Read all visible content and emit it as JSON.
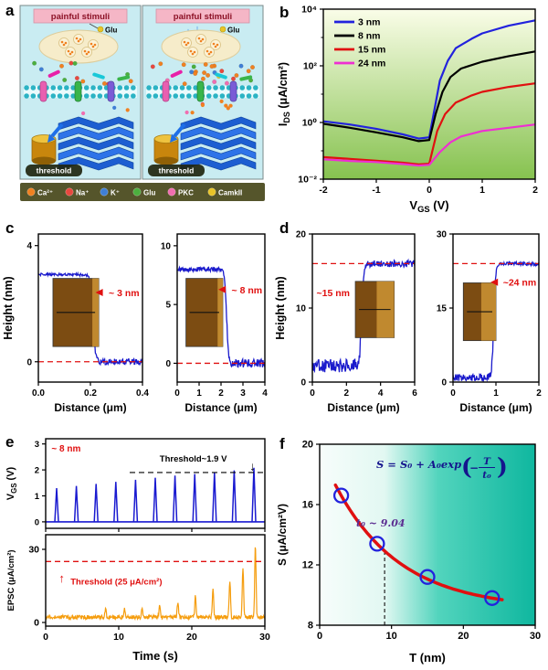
{
  "panel_letters": {
    "a": "a",
    "b": "b",
    "c": "c",
    "d": "d",
    "e": "e",
    "f": "f"
  },
  "schematic": {
    "banner": "painful stimuli",
    "glu": "Glu",
    "threshold": "threshold",
    "legend": [
      {
        "label": "Ca²⁺",
        "color": "#f08121"
      },
      {
        "label": "Na⁺",
        "color": "#e8483f"
      },
      {
        "label": "K⁺",
        "color": "#3f7fd6"
      },
      {
        "label": "Glu",
        "color": "#4caf3e"
      },
      {
        "label": "PKC",
        "color": "#f06eb0"
      },
      {
        "label": "CamkII",
        "color": "#e9c428"
      }
    ],
    "colors": {
      "bg": "#c9ecf2",
      "banner_bg": "#f5b6c6",
      "banner_text": "#8c1126",
      "membrane": "#2bb3c4",
      "membrane_band": "#eafafc",
      "post": "#1d5ed1",
      "post2": "#2e73e8",
      "cylinder": "#c8860d",
      "cylinder_top": "#eec33f",
      "arrow": "#1e6fe8",
      "legend_bg": "#55552b",
      "blob": "#f6ecca",
      "vesicle": "#fbf3d8"
    }
  },
  "chart_data": [
    {
      "id": "b",
      "type": "line",
      "xlabel_parts": [
        [
          "n",
          "V"
        ],
        [
          "s",
          "GS"
        ],
        [
          "n",
          " (V)"
        ]
      ],
      "ylabel_parts": [
        [
          "n",
          "I"
        ],
        [
          "s",
          "DS"
        ],
        [
          "n",
          " (μA/cm²)"
        ]
      ],
      "xlim": [
        -2,
        2
      ],
      "xticks": [
        -2,
        -1,
        0,
        1,
        2
      ],
      "yscale": "log",
      "ylim": [
        0.01,
        10000
      ],
      "yticks": [
        0.01,
        1,
        100,
        10000
      ],
      "ytick_labels": [
        "10⁻²",
        "10⁰",
        "10²",
        "10⁴"
      ],
      "yticks_minor": [
        0.1,
        10,
        1000
      ],
      "bg_gradient": [
        "#fafde8",
        "#86c24f"
      ],
      "series": [
        {
          "name": "3 nm",
          "color": "#2222dd",
          "points": [
            [
              -2,
              1.1
            ],
            [
              -1.5,
              0.85
            ],
            [
              -1,
              0.6
            ],
            [
              -0.5,
              0.38
            ],
            [
              -0.2,
              0.27
            ],
            [
              0,
              0.3
            ],
            [
              0.1,
              3
            ],
            [
              0.2,
              30
            ],
            [
              0.35,
              150
            ],
            [
              0.5,
              420
            ],
            [
              0.8,
              900
            ],
            [
              1,
              1400
            ],
            [
              1.5,
              2600
            ],
            [
              2,
              4000
            ]
          ]
        },
        {
          "name": "8 nm",
          "color": "#000000",
          "points": [
            [
              -2,
              0.9
            ],
            [
              -1.5,
              0.65
            ],
            [
              -1,
              0.45
            ],
            [
              -0.5,
              0.3
            ],
            [
              -0.2,
              0.22
            ],
            [
              0,
              0.24
            ],
            [
              0.12,
              2
            ],
            [
              0.25,
              12
            ],
            [
              0.4,
              40
            ],
            [
              0.6,
              80
            ],
            [
              1,
              140
            ],
            [
              1.5,
              220
            ],
            [
              2,
              320
            ]
          ]
        },
        {
          "name": "15 nm",
          "color": "#e01010",
          "points": [
            [
              -2,
              0.06
            ],
            [
              -1.5,
              0.052
            ],
            [
              -1,
              0.045
            ],
            [
              -0.5,
              0.038
            ],
            [
              -0.2,
              0.033
            ],
            [
              0,
              0.035
            ],
            [
              0.15,
              0.5
            ],
            [
              0.3,
              2
            ],
            [
              0.5,
              5
            ],
            [
              0.8,
              9
            ],
            [
              1,
              12
            ],
            [
              1.5,
              18
            ],
            [
              2,
              24
            ]
          ]
        },
        {
          "name": "24 nm",
          "color": "#ee2fd2",
          "points": [
            [
              -2,
              0.05
            ],
            [
              -1.5,
              0.044
            ],
            [
              -1,
              0.04
            ],
            [
              -0.5,
              0.034
            ],
            [
              -0.2,
              0.03
            ],
            [
              0,
              0.032
            ],
            [
              0.2,
              0.09
            ],
            [
              0.4,
              0.2
            ],
            [
              0.6,
              0.32
            ],
            [
              1,
              0.5
            ],
            [
              1.5,
              0.65
            ],
            [
              2,
              0.85
            ]
          ]
        }
      ]
    },
    {
      "id": "c",
      "type": "step",
      "ylabel": "Height (nm)",
      "xlabel": "Distance (μm)",
      "subplots": [
        {
          "xlim": [
            0,
            0.4
          ],
          "xticks": [
            0,
            0.2,
            0.4
          ],
          "xtick_labels": [
            "0.0",
            "0.2",
            "0.4"
          ],
          "ylim": [
            -0.7,
            4.4
          ],
          "yticks": [
            0,
            4
          ],
          "plateau": 3,
          "base": 0,
          "step_x": 0.21,
          "direction": "down",
          "dash_y": 0,
          "annotation": "~ 3 nm",
          "noise": 0.1,
          "seed": 7,
          "ann": [
            0.97,
            0.42,
            "end"
          ],
          "arrow": 48,
          "inset": [
            0.14,
            0.3,
            0.58,
            0.76
          ],
          "inset2": false
        },
        {
          "xlim": [
            0,
            4
          ],
          "xticks": [
            0,
            1,
            2,
            3,
            4
          ],
          "ylim": [
            -1.6,
            11
          ],
          "yticks": [
            0,
            5,
            10
          ],
          "plateau": 8,
          "base": 0,
          "step_x": 2.25,
          "direction": "down",
          "dash_y": 0,
          "annotation": "~ 8 nm",
          "noise": 0.35,
          "seed": 11,
          "ann": [
            0.97,
            0.4,
            "end"
          ],
          "arrow": 48,
          "inset": [
            0.1,
            0.3,
            0.52,
            0.76
          ],
          "inset2": false
        }
      ]
    },
    {
      "id": "d",
      "type": "step",
      "ylabel": "Height (nm)",
      "xlabel": "Distance (μm)",
      "subplots": [
        {
          "xlim": [
            0,
            6
          ],
          "xticks": [
            0,
            2,
            4,
            6
          ],
          "ylim": [
            0,
            20
          ],
          "yticks": [
            0,
            10,
            20
          ],
          "plateau": 16,
          "base": 2.2,
          "step_x": 2.9,
          "direction": "up",
          "dash_y": 16,
          "annotation": "~15 nm",
          "noise": 0.9,
          "seed": 23,
          "ann": [
            0.04,
            0.42,
            "start"
          ],
          "inset": [
            0.42,
            0.32,
            0.8,
            0.7
          ],
          "inset2": true
        },
        {
          "xlim": [
            0,
            2
          ],
          "xticks": [
            0,
            1,
            2
          ],
          "ylim": [
            0,
            30
          ],
          "yticks": [
            0,
            15,
            30
          ],
          "plateau": 24,
          "base": 0.9,
          "step_x": 0.95,
          "direction": "up",
          "dash_y": 24,
          "annotation": "~24 nm",
          "noise": 0.7,
          "seed": 31,
          "ann": [
            0.97,
            0.35,
            "end"
          ],
          "arrow": 50,
          "inset": [
            0.12,
            0.33,
            0.5,
            0.72
          ],
          "inset2": true
        }
      ]
    },
    {
      "id": "e",
      "type": "pulse",
      "xlabel": "Time (s)",
      "xlim": [
        0,
        30
      ],
      "xticks": [
        0,
        10,
        20,
        30
      ],
      "film_label": "~ 8 nm",
      "top": {
        "ylabel_parts": [
          [
            "n",
            "V"
          ],
          [
            "s",
            "GS"
          ],
          [
            "n",
            " (V)"
          ]
        ],
        "ylim": [
          0,
          3
        ],
        "yticks": [
          0,
          1,
          2,
          3
        ],
        "color": "#1a1ad0",
        "pulse_times": [
          1.5,
          4.2,
          6.9,
          9.6,
          12.3,
          15,
          17.7,
          20.4,
          23.1,
          25.8,
          28.5
        ],
        "pulse_amps": [
          1.3,
          1.38,
          1.46,
          1.54,
          1.62,
          1.7,
          1.78,
          1.84,
          1.9,
          1.98,
          2.08
        ],
        "threshold": 1.9,
        "threshold_label": "Threshold~1.9 V"
      },
      "bottom": {
        "ylabel": "EPSC (μA/cm²)",
        "ylim": [
          0,
          36
        ],
        "yticks": [
          0,
          30
        ],
        "color": "#f59d0e",
        "peak_times": [
          8.2,
          10.8,
          13.2,
          15.6,
          18.1,
          20.5,
          22.9,
          25.2,
          27.0,
          28.7
        ],
        "peak_amps": [
          3.0,
          3.5,
          4.2,
          5.0,
          6.5,
          8.5,
          11.5,
          15.0,
          20.0,
          29.0
        ],
        "threshold": 25,
        "threshold_label": "Threshold (25 μA/cm²)"
      }
    },
    {
      "id": "f",
      "type": "scatter",
      "xlabel": "T (nm)",
      "ylabel": "S (μA/cm²V)",
      "xlim": [
        0,
        30
      ],
      "xticks": [
        0,
        10,
        20,
        30
      ],
      "ylim": [
        8,
        20
      ],
      "yticks": [
        8,
        12,
        16,
        20
      ],
      "points": [
        [
          3,
          16.6
        ],
        [
          8,
          13.4
        ],
        [
          15,
          11.2
        ],
        [
          24,
          9.8
        ]
      ],
      "fit": {
        "S0": 9.06,
        "A0": 10.5,
        "t0": 9.04,
        "trange": [
          2.2,
          25.5
        ]
      },
      "equation": {
        "prefix": "S = S₀ + A₀exp",
        "minus": "−",
        "num": "T",
        "den": "t₀"
      },
      "t0_label": "t₀ ~ 9.04",
      "t0_color": "#5b2d91",
      "dash_x": 9.04,
      "point_color": "#2222dd",
      "curve_color": "#e01010",
      "bg_gradient": {
        "stops": [
          [
            "0%",
            "#f7fdfb"
          ],
          [
            "30%",
            "#e2f8f2"
          ],
          [
            "55%",
            "#52d4bd"
          ],
          [
            "100%",
            "#0fb79f"
          ]
        ]
      }
    }
  ]
}
